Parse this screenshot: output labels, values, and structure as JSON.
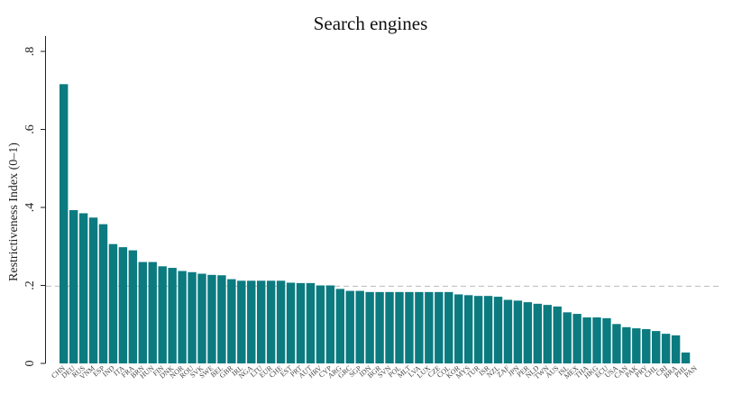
{
  "chart_data": {
    "type": "bar",
    "title": "Search engines",
    "xlabel": "",
    "ylabel": "Restrictiveness Index (0–1)",
    "ylim": [
      0,
      0.84
    ],
    "yticks": [
      0,
      0.2,
      0.4,
      0.6,
      0.8
    ],
    "ytick_labels": [
      "0",
      ".2",
      ".4",
      ".6",
      ".8"
    ],
    "reference_line": 0.198,
    "bar_color": "#0b7b80",
    "grid": false,
    "categories": [
      "CHN",
      "DEU",
      "RUS",
      "VNM",
      "ESP",
      "IND",
      "ITA",
      "FRA",
      "BRN",
      "HUN",
      "FIN",
      "DNK",
      "NOR",
      "ROU",
      "SVK",
      "SWE",
      "BEL",
      "GBR",
      "IRL",
      "NGA",
      "LTU",
      "EUR",
      "CHE",
      "EST",
      "PRT",
      "AUT",
      "HRV",
      "CYP",
      "ARG",
      "GRC",
      "SGP",
      "IDN",
      "BGR",
      "SVN",
      "POL",
      "MLT",
      "LVA",
      "LUX",
      "CZE",
      "COL",
      "KOR",
      "MYS",
      "TUR",
      "ISR",
      "NZL",
      "ZAF",
      "JPN",
      "PER",
      "NLD",
      "TWN",
      "AUS",
      "ISL",
      "MEX",
      "THA",
      "HKG",
      "ECU",
      "USA",
      "CAN",
      "PAK",
      "PRY",
      "CHL",
      "CRI",
      "BRA",
      "PHL",
      "PAN"
    ],
    "values": [
      0.716,
      0.393,
      0.385,
      0.374,
      0.357,
      0.306,
      0.298,
      0.29,
      0.26,
      0.26,
      0.249,
      0.245,
      0.237,
      0.234,
      0.23,
      0.227,
      0.226,
      0.216,
      0.212,
      0.212,
      0.212,
      0.212,
      0.212,
      0.207,
      0.206,
      0.206,
      0.2,
      0.2,
      0.191,
      0.186,
      0.186,
      0.183,
      0.183,
      0.183,
      0.183,
      0.183,
      0.183,
      0.183,
      0.183,
      0.183,
      0.177,
      0.175,
      0.173,
      0.173,
      0.171,
      0.163,
      0.161,
      0.157,
      0.153,
      0.15,
      0.146,
      0.131,
      0.127,
      0.118,
      0.118,
      0.116,
      0.101,
      0.093,
      0.09,
      0.088,
      0.083,
      0.076,
      0.072,
      0.028,
      0
    ]
  }
}
